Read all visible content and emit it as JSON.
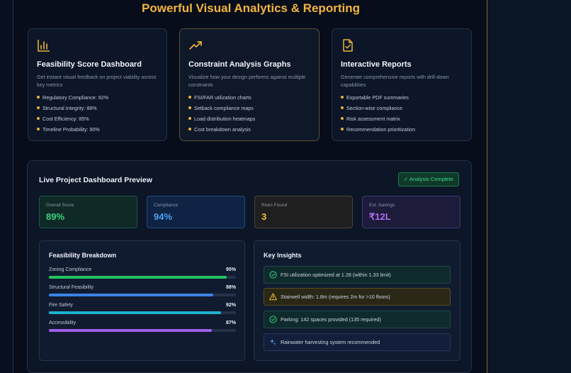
{
  "hero": {
    "title": "Powerful Visual Analytics & Reporting"
  },
  "features": [
    {
      "title": "Feasibility Score Dashboard",
      "description": "Get instant visual feedback on project viability across key metrics",
      "items": [
        "Regulatory Compliance: 92%",
        "Structural Integrity: 88%",
        "Cost Efficiency: 85%",
        "Timeline Probability: 90%"
      ],
      "icon": "bar-chart-icon"
    },
    {
      "title": "Constraint Analysis Graphs",
      "description": "Visualize how your design performs against multiple constraints",
      "items": [
        "FSI/FAR utilization charts",
        "Setback compliance maps",
        "Load distribution heatmaps",
        "Cost breakdown analysis"
      ],
      "icon": "trending-up-icon"
    },
    {
      "title": "Interactive Reports",
      "description": "Generate comprehensive reports with drill-down capabilities",
      "items": [
        "Exportable PDF summaries",
        "Section-wise compliance",
        "Risk assessment matrix",
        "Recommendation prioritization"
      ],
      "icon": "document-check-icon"
    }
  ],
  "dashboard": {
    "title": "Live Project Dashboard Preview",
    "badge": "✓ Analysis Complete",
    "stats": [
      {
        "label": "Overall Score",
        "value": "89%"
      },
      {
        "label": "Compliance",
        "value": "94%"
      },
      {
        "label": "Risks Found",
        "value": "3"
      },
      {
        "label": "Est. Savings",
        "value": "₹12L"
      }
    ],
    "breakdown": {
      "title": "Feasibility Breakdown",
      "rows": [
        {
          "name": "Zoning Compliance",
          "percent": "95%",
          "value": 95,
          "color": "#22c35e"
        },
        {
          "name": "Structural Feasibility",
          "percent": "88%",
          "value": 88,
          "color": "#3b82e6"
        },
        {
          "name": "Fire Safety",
          "percent": "92%",
          "value": 92,
          "color": "#1fb0d0"
        },
        {
          "name": "Accessibility",
          "percent": "87%",
          "value": 87,
          "color": "#a35ee8"
        }
      ]
    },
    "insights": {
      "title": "Key Insights",
      "items": [
        {
          "text": "FSI utilization optimized at 1.28 (within 1.33 limit)",
          "icon": "check-circle-icon"
        },
        {
          "text": "Stairwell width: 1.8m (requires 2m for >10 floors)",
          "icon": "warning-icon"
        },
        {
          "text": "Parking: 142 spaces provided (135 required)",
          "icon": "check-circle-icon"
        },
        {
          "text": "Rainwater harvesting system recommended",
          "icon": "sparkle-icon"
        }
      ]
    }
  }
}
